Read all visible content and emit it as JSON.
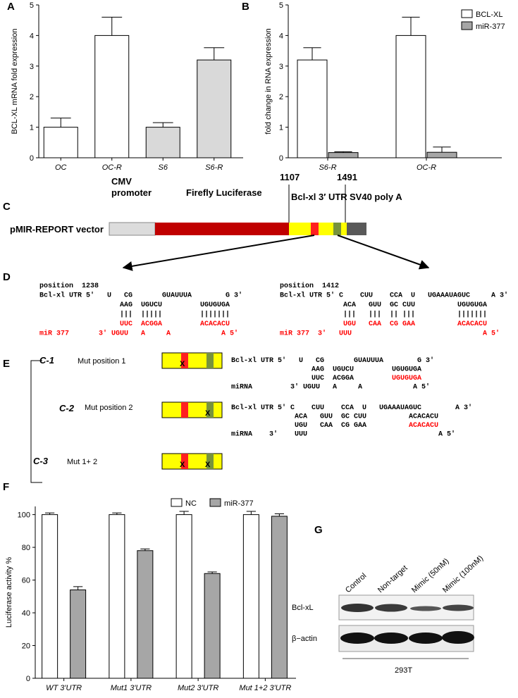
{
  "chart_data": [
    {
      "type": "bar",
      "panel": "A",
      "ylabel": "BCL-XL mRNA fold expression",
      "categories": [
        "OC",
        "OC-R",
        "S6",
        "S6-R"
      ],
      "values": [
        1,
        4,
        1,
        3.2
      ],
      "errors": [
        0.3,
        0.6,
        0.15,
        0.4
      ],
      "colors": [
        "#ffffff",
        "#ffffff",
        "#d9d9d9",
        "#d9d9d9"
      ],
      "error_bars": "upper",
      "ylim": [
        0,
        5
      ],
      "yticks": [
        0,
        1,
        2,
        3,
        4,
        5
      ]
    },
    {
      "type": "bar",
      "panel": "B",
      "ylabel": "fold change in RNA expression",
      "categories": [
        "S6-R",
        "OC-R"
      ],
      "series": [
        {
          "name": "BCL-XL",
          "color": "#ffffff",
          "values": [
            3.2,
            4
          ],
          "errors": [
            0.4,
            0.6
          ]
        },
        {
          "name": "miR-377",
          "color": "#a6a6a6",
          "values": [
            0.17,
            0.18
          ],
          "errors": [
            0.03,
            0.17
          ]
        }
      ],
      "error_bars": "upper",
      "legend": "upper right",
      "ylim": [
        0,
        5
      ],
      "yticks": [
        0,
        1,
        2,
        3,
        4,
        5
      ]
    },
    {
      "type": "bar",
      "panel": "F",
      "ylabel": "Luciferase activity %",
      "categories": [
        "WT 3'UTR",
        "Mut1 3'UTR",
        "Mut2 3'UTR",
        "Mut 1+2 3'UTR"
      ],
      "series": [
        {
          "name": "NC",
          "color": "#ffffff",
          "values": [
            100,
            100,
            100,
            100
          ],
          "errors": [
            1,
            1,
            2,
            2
          ]
        },
        {
          "name": "miR-377",
          "color": "#a6a6a6",
          "values": [
            54,
            78,
            64,
            99
          ],
          "errors": [
            2,
            1,
            1,
            1.5
          ]
        }
      ],
      "error_bars": "both",
      "legend": "upper center",
      "ylim": [
        0,
        105
      ],
      "yticks": [
        0,
        20,
        40,
        60,
        80,
        100
      ]
    }
  ],
  "panel_c": {
    "label": "C",
    "cmv_promoter": [
      "CMV",
      "promoter"
    ],
    "luciferase": "Firefly Luciferase",
    "start": "1107",
    "end": "1491",
    "utr": "Bcl-xl 3′ UTR",
    "polya": "SV40 poly A",
    "vector": "pMIR-REPORT vector"
  },
  "panel_d": {
    "label": "D",
    "left": [
      {
        "text": "position  1238"
      },
      {
        "text": "Bcl-xl UTR 5'   U   CG       GUAUUUA        G 3'"
      },
      {
        "text": "                   AAG  UGUCU         UGUGUGA"
      },
      {
        "text": "                   |||  |||||         |||||||"
      },
      {
        "text": "                   UUC  ACGGA         ACACACU",
        "color": "red"
      },
      {
        "text": "miR 377       3' UGUU   A     A            A 5'",
        "color": "red"
      }
    ],
    "right": [
      {
        "text": "position  1412"
      },
      {
        "text": "Bcl-xl UTR 5' C    CUU    CCA  U   UGAAAUAGUC     A 3'"
      },
      {
        "text": "               ACA   GUU  GC CUU          UGUGUGA"
      },
      {
        "text": "               |||   |||  || |||          |||||||"
      },
      {
        "text": "               UGU   CAA  CG GAA          ACACACU",
        "color": "red"
      },
      {
        "text": "miR 377  3'   UUU                               A 5'",
        "color": "red"
      }
    ]
  },
  "panel_e": {
    "label": "E",
    "constructs": [
      {
        "id": "C-1",
        "name": "Mut position 1",
        "sequence": [
          {
            "text": "Bcl-xl UTR 5'   U   CG       GUAUUUA        G 3'"
          },
          {
            "text": "                   AAG  UGUCU         UGUGUGA"
          },
          {
            "text": "                   UUC  ACGGA         ",
            "highlight": "UGUGUGA"
          },
          {
            "text": "miRNA         3' UGUU   A     A            A 5'"
          }
        ]
      },
      {
        "id": "C-2",
        "name": "Mut position 2",
        "sequence": [
          {
            "text": "Bcl-xl UTR 5' C    CUU    CCA  U   UGAAAUAGUC        A 3'"
          },
          {
            "text": "               ACA   GUU  GC CUU          ACACACU"
          },
          {
            "text": "               UGU   CAA  CG GAA          ",
            "highlight": "ACACACU"
          },
          {
            "text": "miRNA    3'    UUU                               A 5'"
          }
        ]
      },
      {
        "id": "C-3",
        "name": "Mut 1+ 2"
      }
    ]
  },
  "panel_g": {
    "label": "G",
    "lanes": [
      "Control",
      "Non-target",
      "Mimic (50nM)",
      "Mimic (100nM)"
    ],
    "rows": [
      "Bcl-xL",
      "β−actin"
    ],
    "cell_line": "293T"
  }
}
